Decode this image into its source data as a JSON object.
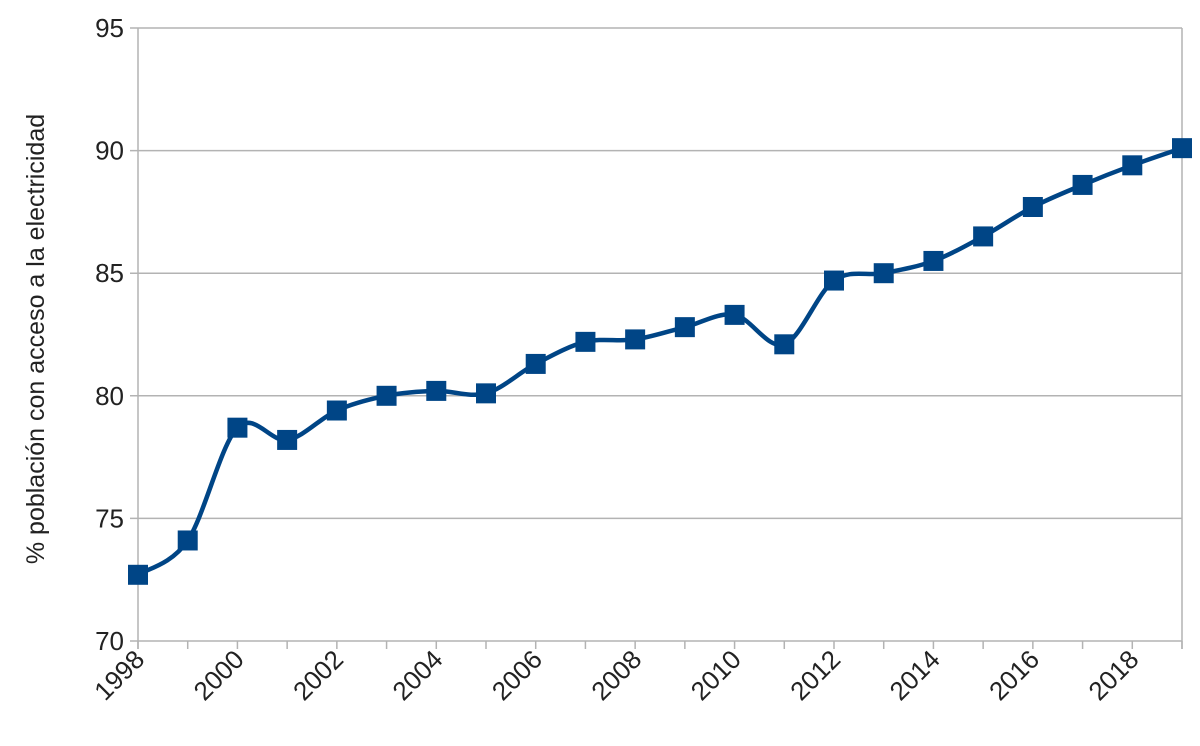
{
  "chart_data": {
    "type": "line",
    "title": "",
    "xlabel": "",
    "ylabel": "% población con acceso a la electricidad",
    "x": [
      1998,
      1999,
      2000,
      2001,
      2002,
      2003,
      2004,
      2005,
      2006,
      2007,
      2008,
      2009,
      2010,
      2011,
      2012,
      2013,
      2014,
      2015,
      2016,
      2017,
      2018,
      2019
    ],
    "series": [
      {
        "values": [
          72.7,
          74.1,
          78.7,
          78.2,
          79.4,
          80.0,
          80.2,
          80.1,
          81.3,
          82.2,
          82.3,
          82.8,
          83.3,
          82.1,
          84.7,
          85.0,
          85.5,
          86.5,
          87.7,
          88.6,
          89.4,
          90.1
        ]
      }
    ],
    "xlim": [
      1998,
      2019
    ],
    "ylim": [
      70,
      95
    ],
    "x_ticks": [
      "1998",
      "2000",
      "2002",
      "2004",
      "2006",
      "2008",
      "2010",
      "2012",
      "2014",
      "2016",
      "2018"
    ],
    "y_ticks": [
      "70",
      "75",
      "80",
      "85",
      "90",
      "95"
    ],
    "grid": "horizontal",
    "legend": "none",
    "colors": {
      "series": "#004586",
      "grid": "#b3b3b3",
      "text": "#222222"
    },
    "marker": "square",
    "smooth": true
  }
}
